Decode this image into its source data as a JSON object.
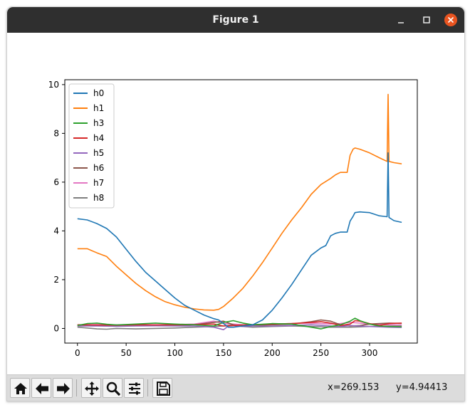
{
  "window": {
    "title": "Figure 1"
  },
  "status": {
    "x_readout": "x=269.153",
    "y_readout": "y=4.94413"
  },
  "toolbar": {
    "icons": [
      "home-icon",
      "back-arrow-icon",
      "forward-arrow-icon",
      "pan-icon",
      "zoom-icon",
      "configure-subplots-icon",
      "save-icon"
    ]
  },
  "chart_data": {
    "type": "line",
    "xlim": [
      -13,
      349
    ],
    "ylim": [
      -0.6,
      10.2
    ],
    "xticks": [
      0,
      50,
      100,
      150,
      200,
      250,
      300
    ],
    "yticks": [
      0,
      2,
      4,
      6,
      8,
      10
    ],
    "legend": "top-left",
    "grid": false,
    "series": [
      {
        "name": "h0",
        "color": "#1f77b4",
        "x": [
          0,
          10,
          20,
          30,
          40,
          50,
          60,
          70,
          80,
          90,
          100,
          110,
          120,
          130,
          140,
          145,
          150,
          155,
          160,
          170,
          180,
          190,
          200,
          210,
          220,
          230,
          240,
          250,
          255,
          260,
          265,
          270,
          275,
          277,
          280,
          283,
          285,
          290,
          300,
          310,
          318,
          319,
          320,
          325,
          333
        ],
        "y": [
          4.5,
          4.45,
          4.3,
          4.1,
          3.75,
          3.25,
          2.75,
          2.3,
          1.95,
          1.6,
          1.25,
          0.95,
          0.75,
          0.55,
          0.4,
          0.35,
          0.2,
          0.05,
          0.05,
          0.1,
          0.15,
          0.35,
          0.75,
          1.25,
          1.8,
          2.4,
          3.0,
          3.3,
          3.4,
          3.8,
          3.9,
          3.95,
          3.95,
          3.95,
          4.4,
          4.6,
          4.75,
          4.78,
          4.75,
          4.62,
          4.58,
          7.2,
          4.55,
          4.42,
          4.35
        ]
      },
      {
        "name": "h1",
        "color": "#ff7f0e",
        "x": [
          0,
          10,
          20,
          30,
          40,
          50,
          60,
          70,
          80,
          90,
          100,
          110,
          120,
          130,
          140,
          145,
          150,
          160,
          170,
          180,
          190,
          200,
          210,
          220,
          230,
          240,
          250,
          260,
          265,
          270,
          277,
          280,
          283,
          285,
          290,
          300,
          310,
          318,
          319,
          320,
          325,
          333
        ],
        "y": [
          3.27,
          3.27,
          3.1,
          2.95,
          2.55,
          2.2,
          1.85,
          1.55,
          1.3,
          1.1,
          0.97,
          0.87,
          0.8,
          0.76,
          0.75,
          0.78,
          0.9,
          1.25,
          1.65,
          2.15,
          2.7,
          3.3,
          3.9,
          4.45,
          4.95,
          5.5,
          5.9,
          6.15,
          6.3,
          6.4,
          6.4,
          7.1,
          7.35,
          7.4,
          7.35,
          7.2,
          7.0,
          6.85,
          9.6,
          6.85,
          6.8,
          6.75
        ]
      },
      {
        "name": "h3",
        "color": "#2ca02c",
        "x": [
          0,
          10,
          20,
          30,
          40,
          60,
          80,
          100,
          120,
          140,
          150,
          160,
          170,
          180,
          190,
          200,
          220,
          240,
          250,
          260,
          270,
          280,
          285,
          290,
          300,
          310,
          320,
          333
        ],
        "y": [
          0.12,
          0.2,
          0.22,
          0.17,
          0.14,
          0.18,
          0.22,
          0.18,
          0.15,
          0.1,
          0.25,
          0.32,
          0.22,
          0.15,
          0.17,
          0.2,
          0.18,
          0.05,
          -0.02,
          0.08,
          0.15,
          0.3,
          0.42,
          0.32,
          0.18,
          0.1,
          0.08,
          0.07
        ]
      },
      {
        "name": "h4",
        "color": "#d62728",
        "x": [
          0,
          20,
          40,
          60,
          80,
          100,
          120,
          140,
          150,
          160,
          170,
          180,
          200,
          220,
          240,
          250,
          260,
          270,
          280,
          285,
          290,
          300,
          310,
          320,
          333
        ],
        "y": [
          0.15,
          0.14,
          0.13,
          0.15,
          0.14,
          0.15,
          0.16,
          0.18,
          0.1,
          0.12,
          0.14,
          0.15,
          0.18,
          0.2,
          0.25,
          0.28,
          0.22,
          0.12,
          0.18,
          0.32,
          0.3,
          0.2,
          0.12,
          0.2,
          0.22
        ]
      },
      {
        "name": "h5",
        "color": "#9467bd",
        "x": [
          0,
          20,
          40,
          60,
          80,
          100,
          120,
          140,
          150,
          155,
          160,
          170,
          180,
          200,
          220,
          240,
          260,
          270,
          280,
          290,
          300,
          320,
          333
        ],
        "y": [
          0.1,
          0.1,
          0.09,
          0.1,
          0.11,
          0.1,
          0.1,
          0.05,
          -0.05,
          0.1,
          0.12,
          0.08,
          0.1,
          0.1,
          0.12,
          0.15,
          0.1,
          0.08,
          0.12,
          0.1,
          0.08,
          0.05,
          0.04
        ]
      },
      {
        "name": "h6",
        "color": "#8c564b",
        "x": [
          0,
          20,
          40,
          60,
          80,
          100,
          120,
          140,
          150,
          160,
          170,
          180,
          200,
          220,
          240,
          250,
          260,
          270,
          280,
          290,
          300,
          310,
          320,
          333
        ],
        "y": [
          0.1,
          0.12,
          0.1,
          0.13,
          0.12,
          0.11,
          0.15,
          0.25,
          0.3,
          0.15,
          0.08,
          0.12,
          0.15,
          0.18,
          0.28,
          0.35,
          0.3,
          0.15,
          0.1,
          0.12,
          0.18,
          0.2,
          0.22,
          0.21
        ]
      },
      {
        "name": "h7",
        "color": "#e377c2",
        "x": [
          0,
          20,
          40,
          60,
          80,
          100,
          120,
          140,
          150,
          160,
          170,
          180,
          200,
          220,
          240,
          260,
          270,
          280,
          290,
          300,
          320,
          333
        ],
        "y": [
          0.15,
          0.16,
          0.15,
          0.16,
          0.15,
          0.16,
          0.18,
          0.3,
          0.2,
          0.18,
          0.15,
          0.16,
          0.18,
          0.2,
          0.22,
          0.18,
          0.2,
          0.25,
          0.22,
          0.18,
          0.15,
          0.14
        ]
      },
      {
        "name": "h8",
        "color": "#7f7f7f",
        "x": [
          0,
          10,
          20,
          30,
          40,
          60,
          80,
          100,
          120,
          140,
          150,
          160,
          170,
          180,
          200,
          220,
          240,
          260,
          280,
          300,
          320,
          333
        ],
        "y": [
          0.05,
          0.02,
          -0.02,
          -0.03,
          0.0,
          -0.02,
          0.0,
          0.02,
          0.05,
          0.08,
          0.1,
          0.15,
          0.08,
          0.05,
          0.08,
          0.1,
          0.08,
          0.05,
          0.05,
          0.08,
          0.1,
          0.1
        ]
      }
    ]
  }
}
